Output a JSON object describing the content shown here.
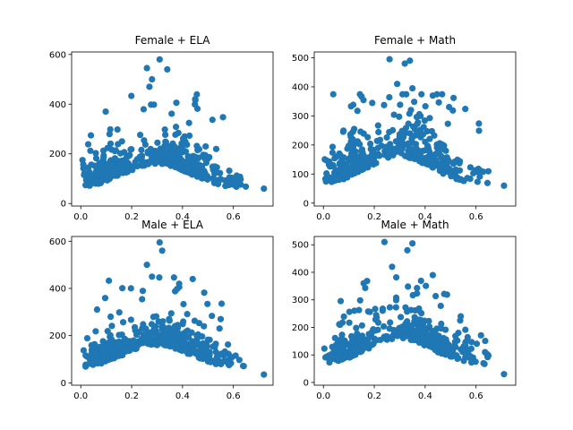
{
  "chart_data": [
    {
      "type": "scatter",
      "title": "Female + ELA",
      "xlim": [
        -0.036,
        0.756
      ],
      "ylim": [
        -10,
        610
      ],
      "xticks": [
        0.0,
        0.2,
        0.4,
        0.6
      ],
      "xtick_labels": [
        "0.0",
        "0.2",
        "0.4",
        "0.6"
      ],
      "yticks": [
        0,
        200,
        400,
        600
      ],
      "ytick_labels": [
        "0",
        "200",
        "400",
        "600"
      ],
      "color": "#1f77b4",
      "seed": 11,
      "peaks": [
        {
          "x": 0.26,
          "y": 545
        },
        {
          "x": 0.31,
          "y": 580
        },
        {
          "x": 0.34,
          "y": 540
        },
        {
          "x": 0.28,
          "y": 500
        },
        {
          "x": 0.45,
          "y": 420
        },
        {
          "x": 0.27,
          "y": 470
        },
        {
          "x": 0.72,
          "y": 60
        }
      ]
    },
    {
      "type": "scatter",
      "title": "Female + Math",
      "xlim": [
        -0.036,
        0.756
      ],
      "ylim": [
        -10,
        520
      ],
      "xticks": [
        0.0,
        0.2,
        0.4,
        0.6
      ],
      "xtick_labels": [
        "0.0",
        "0.2",
        "0.4",
        "0.6"
      ],
      "yticks": [
        0,
        100,
        200,
        300,
        400,
        500
      ],
      "ytick_labels": [
        "0",
        "100",
        "200",
        "300",
        "400",
        "500"
      ],
      "color": "#1f77b4",
      "seed": 23,
      "peaks": [
        {
          "x": 0.26,
          "y": 495
        },
        {
          "x": 0.32,
          "y": 480
        },
        {
          "x": 0.34,
          "y": 490
        },
        {
          "x": 0.29,
          "y": 410
        },
        {
          "x": 0.43,
          "y": 370
        },
        {
          "x": 0.35,
          "y": 395
        },
        {
          "x": 0.71,
          "y": 60
        }
      ]
    },
    {
      "type": "scatter",
      "title": "Male + ELA",
      "xlim": [
        -0.036,
        0.756
      ],
      "ylim": [
        -10,
        620
      ],
      "xticks": [
        0.0,
        0.2,
        0.4,
        0.6
      ],
      "xtick_labels": [
        "0.0",
        "0.2",
        "0.4",
        "0.6"
      ],
      "yticks": [
        0,
        200,
        400,
        600
      ],
      "ytick_labels": [
        "0",
        "200",
        "400",
        "600"
      ],
      "color": "#1f77b4",
      "seed": 37,
      "peaks": [
        {
          "x": 0.31,
          "y": 595
        },
        {
          "x": 0.32,
          "y": 560
        },
        {
          "x": 0.26,
          "y": 500
        },
        {
          "x": 0.44,
          "y": 440
        },
        {
          "x": 0.28,
          "y": 450
        },
        {
          "x": 0.55,
          "y": 270
        },
        {
          "x": 0.72,
          "y": 35
        }
      ]
    },
    {
      "type": "scatter",
      "title": "Male + Math",
      "xlim": [
        -0.036,
        0.756
      ],
      "ylim": [
        -10,
        530
      ],
      "xticks": [
        0.0,
        0.2,
        0.4,
        0.6
      ],
      "xtick_labels": [
        "0.0",
        "0.2",
        "0.4",
        "0.6"
      ],
      "yticks": [
        0,
        100,
        200,
        300,
        400,
        500
      ],
      "ytick_labels": [
        "0",
        "100",
        "200",
        "300",
        "400",
        "500"
      ],
      "color": "#1f77b4",
      "seed": 53,
      "peaks": [
        {
          "x": 0.24,
          "y": 510
        },
        {
          "x": 0.35,
          "y": 505
        },
        {
          "x": 0.33,
          "y": 480
        },
        {
          "x": 0.43,
          "y": 390
        },
        {
          "x": 0.27,
          "y": 420
        },
        {
          "x": 0.54,
          "y": 240
        },
        {
          "x": 0.71,
          "y": 30
        }
      ]
    }
  ]
}
